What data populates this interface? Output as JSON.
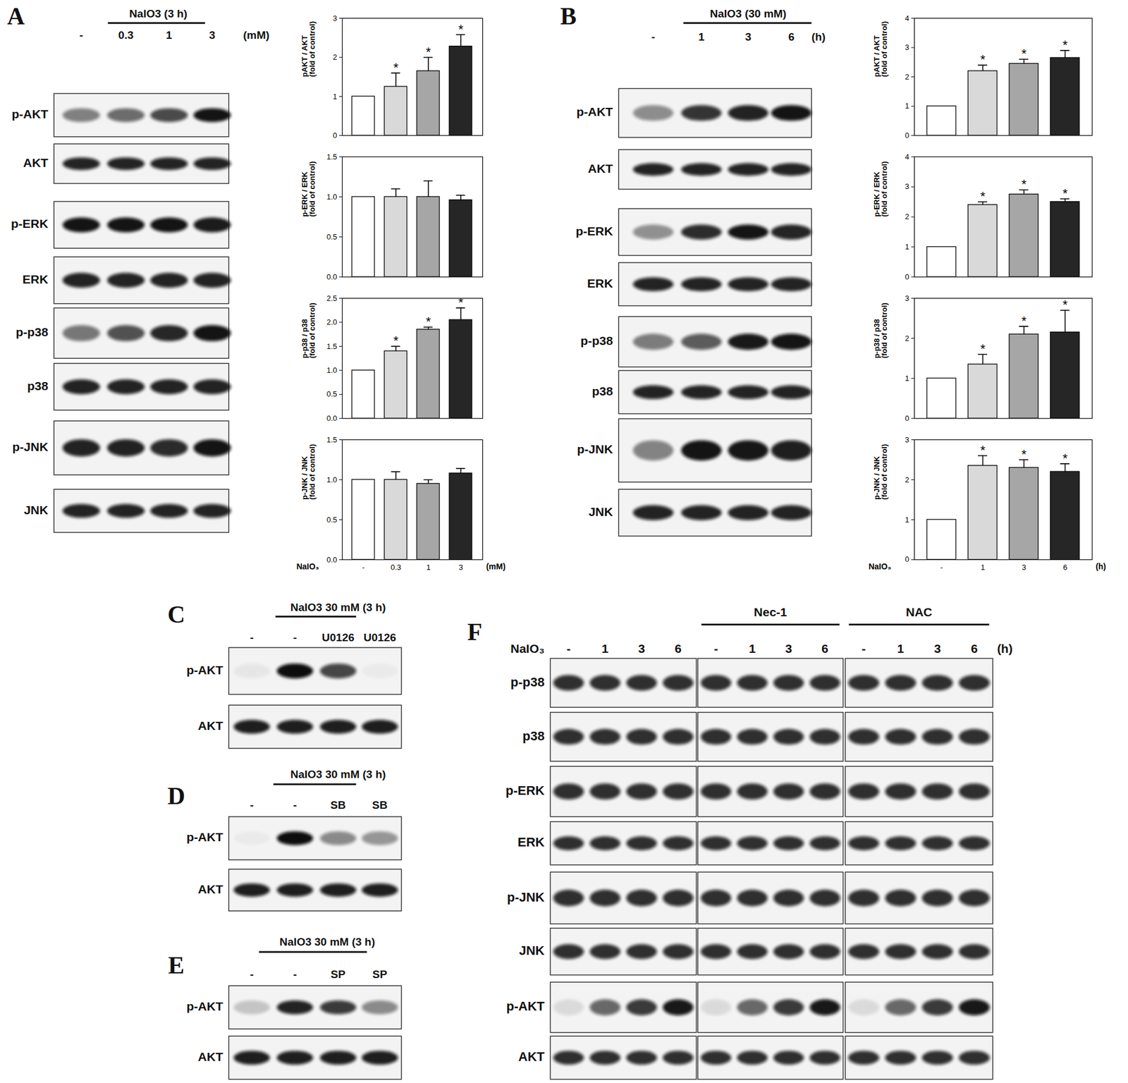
{
  "chart_data": [
    {
      "type": "bar",
      "y_label": "pAKT / AKT\n(fold of control)",
      "categories": [
        null,
        null,
        null,
        null
      ],
      "values": [
        1,
        1.25,
        1.65,
        2.28
      ],
      "errors": [
        0,
        0.35,
        0.35,
        0.3
      ],
      "significant": [
        false,
        true,
        true,
        true
      ],
      "significance_label": "*",
      "colors": [
        "#ffffff",
        "#d9d9d9",
        "#a6a6a6",
        "#262626"
      ],
      "ylim": [
        0,
        3
      ],
      "yticks": [
        0,
        1,
        2,
        3
      ]
    },
    {
      "type": "bar",
      "y_label": "p-ERK / ERK\n(fold of control)",
      "categories": [
        null,
        null,
        null,
        null
      ],
      "values": [
        1,
        1.0,
        1.0,
        0.96
      ],
      "errors": [
        0,
        0.1,
        0.2,
        0.06
      ],
      "significant": [
        false,
        false,
        false,
        false
      ],
      "significance_label": "*",
      "colors": [
        "#ffffff",
        "#d9d9d9",
        "#a6a6a6",
        "#262626"
      ],
      "ylim": [
        0,
        1.5
      ],
      "yticks": [
        {
          "value": 0,
          "label": "0.0"
        },
        {
          "value": 0.5,
          "label": "0.5"
        },
        {
          "value": 1,
          "label": "1.0"
        },
        {
          "value": 1.5,
          "label": "1.5"
        }
      ]
    },
    {
      "type": "bar",
      "y_label": "p-p38 / p38\n(fold of control)",
      "categories": [
        null,
        null,
        null,
        null
      ],
      "values": [
        1,
        1.4,
        1.85,
        2.05
      ],
      "errors": [
        0,
        0.1,
        0.05,
        0.25
      ],
      "significant": [
        false,
        true,
        true,
        true
      ],
      "significance_label": "*",
      "colors": [
        "#ffffff",
        "#d9d9d9",
        "#a6a6a6",
        "#262626"
      ],
      "ylim": [
        0,
        2.5
      ],
      "yticks": [
        {
          "value": 0,
          "label": "0.0"
        },
        {
          "value": 0.5,
          "label": "0.5"
        },
        {
          "value": 1,
          "label": "1.0"
        },
        {
          "value": 1.5,
          "label": "1.5"
        },
        {
          "value": 2,
          "label": "2.0"
        },
        {
          "value": 2.5,
          "label": "2.5"
        }
      ]
    },
    {
      "type": "bar",
      "y_label": "p-JNK / JNK\n(fold of control)",
      "categories": [
        "-",
        "0.3",
        "1",
        "3"
      ],
      "x_label": "NaIO₃",
      "x_unit": "(mM)",
      "values": [
        1,
        1.0,
        0.95,
        1.08
      ],
      "errors": [
        0,
        0.1,
        0.05,
        0.06
      ],
      "significant": [
        false,
        false,
        false,
        false
      ],
      "significance_label": "*",
      "colors": [
        "#ffffff",
        "#d9d9d9",
        "#a6a6a6",
        "#262626"
      ],
      "ylim": [
        0,
        1.5
      ],
      "yticks": [
        {
          "value": 0,
          "label": "0.0"
        },
        {
          "value": 0.5,
          "label": "0.5"
        },
        {
          "value": 1,
          "label": "1.0"
        },
        {
          "value": 1.5,
          "label": "1.5"
        }
      ]
    },
    {
      "type": "bar",
      "y_label": "pAKT / AKT\n(fold of control)",
      "categories": [
        null,
        null,
        null,
        null
      ],
      "values": [
        1,
        2.2,
        2.45,
        2.65
      ],
      "errors": [
        0,
        0.2,
        0.15,
        0.25
      ],
      "significant": [
        false,
        true,
        true,
        true
      ],
      "significance_label": "*",
      "colors": [
        "#ffffff",
        "#d9d9d9",
        "#a6a6a6",
        "#262626"
      ],
      "ylim": [
        0,
        4
      ],
      "yticks": [
        0,
        1,
        2,
        3,
        4
      ]
    },
    {
      "type": "bar",
      "y_label": "p-ERK / ERK\n(fold of control)",
      "categories": [
        null,
        null,
        null,
        null
      ],
      "values": [
        1,
        2.4,
        2.75,
        2.5
      ],
      "errors": [
        0,
        0.1,
        0.15,
        0.1
      ],
      "significant": [
        false,
        true,
        true,
        true
      ],
      "significance_label": "*",
      "colors": [
        "#ffffff",
        "#d9d9d9",
        "#a6a6a6",
        "#262626"
      ],
      "ylim": [
        0,
        4
      ],
      "yticks": [
        0,
        1,
        2,
        3,
        4
      ]
    },
    {
      "type": "bar",
      "y_label": "p-p38 / p38\n(fold of control)",
      "categories": [
        null,
        null,
        null,
        null
      ],
      "values": [
        1,
        1.35,
        2.1,
        2.15
      ],
      "errors": [
        0,
        0.25,
        0.2,
        0.55
      ],
      "significant": [
        false,
        true,
        true,
        true
      ],
      "significance_label": "*",
      "colors": [
        "#ffffff",
        "#d9d9d9",
        "#a6a6a6",
        "#262626"
      ],
      "ylim": [
        0,
        3
      ],
      "yticks": [
        0,
        1,
        2,
        3
      ]
    },
    {
      "type": "bar",
      "y_label": "p-JNK / JNK\n(fold of control)",
      "categories": [
        "-",
        "1",
        "3",
        "6"
      ],
      "x_label": "NaIO₃",
      "x_unit": "(h)",
      "values": [
        1,
        2.35,
        2.3,
        2.2
      ],
      "errors": [
        0,
        0.25,
        0.2,
        0.2
      ],
      "significant": [
        false,
        true,
        true,
        true
      ],
      "significance_label": "*",
      "colors": [
        "#ffffff",
        "#d9d9d9",
        "#a6a6a6",
        "#262626"
      ],
      "ylim": [
        0,
        3
      ],
      "yticks": [
        0,
        1,
        2,
        3
      ]
    }
  ],
  "blots": [
    {
      "panel": "A",
      "treatment": "NaIO3 (3 h)",
      "lanes": [
        "-",
        "0.3",
        "1",
        "3"
      ],
      "unit": "(mM)",
      "rows": [
        "p-AKT",
        "AKT",
        "p-ERK",
        "ERK",
        "p-p38",
        "p38",
        "p-JNK",
        "JNK"
      ]
    },
    {
      "panel": "B",
      "treatment": "NaIO3 (30 mM)",
      "lanes": [
        "-",
        "1",
        "3",
        "6"
      ],
      "unit": "(h)",
      "rows": [
        "p-AKT",
        "AKT",
        "p-ERK",
        "ERK",
        "p-p38",
        "p38",
        "p-JNK",
        "JNK"
      ]
    },
    {
      "panel": "C",
      "treatment": "NaIO3 30 mM (3 h)",
      "lanes": [
        "-",
        "-",
        "U0126",
        "U0126"
      ],
      "rows": [
        "p-AKT",
        "AKT"
      ]
    },
    {
      "panel": "D",
      "treatment": "NaIO3 30 mM (3 h)",
      "lanes": [
        "-",
        "-",
        "SB",
        "SB"
      ],
      "rows": [
        "p-AKT",
        "AKT"
      ]
    },
    {
      "panel": "E",
      "treatment": "NaIO3 30 mM (3 h)",
      "lanes": [
        "-",
        "-",
        "SP",
        "SP"
      ],
      "rows": [
        "p-AKT",
        "AKT"
      ]
    },
    {
      "panel": "F",
      "treatment": "NaIO₃",
      "unit": "(h)",
      "groups": [
        {
          "lanes": [
            "-",
            "1",
            "3",
            "6"
          ]
        },
        {
          "label": "Nec-1",
          "lanes": [
            "-",
            "1",
            "3",
            "6"
          ]
        },
        {
          "label": "NAC",
          "lanes": [
            "-",
            "1",
            "3",
            "6"
          ]
        }
      ],
      "rows": [
        "p-p38",
        "p38",
        "p-ERK",
        "ERK",
        "p-JNK",
        "JNK",
        "p-AKT",
        "AKT"
      ]
    }
  ]
}
